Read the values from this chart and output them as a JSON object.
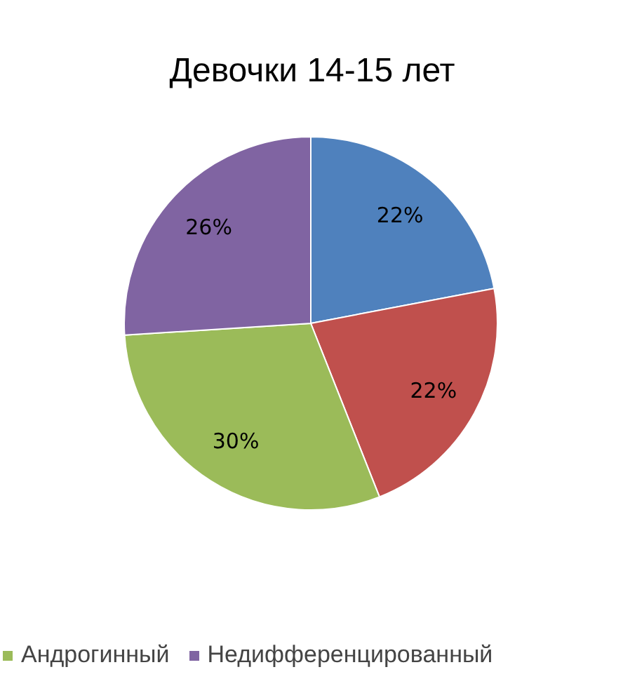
{
  "chart_data": {
    "type": "pie",
    "title": "Девочки 14-15 лет",
    "categories": [
      null,
      null,
      "Андрогинный",
      "Недифференцированный"
    ],
    "values": [
      22,
      22,
      30,
      26
    ],
    "colors": [
      "#4f81bd",
      "#c0504d",
      "#9bbb59",
      "#8064a2"
    ],
    "value_labels": [
      "22%",
      "22%",
      "30%",
      "26%"
    ],
    "legend": "bottom"
  }
}
